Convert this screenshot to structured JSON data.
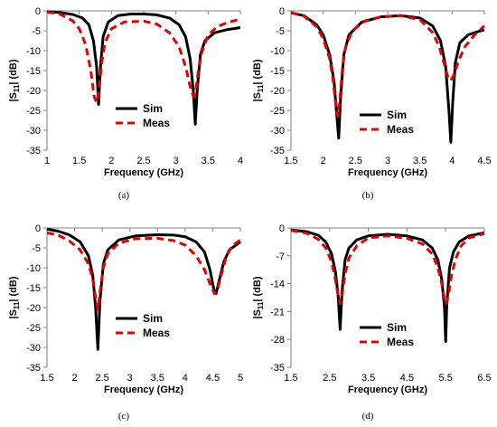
{
  "chart_data": [
    {
      "type": "line",
      "caption": "(a)",
      "xlabel": "Frequency (GHz)",
      "ylabel_main": "|S",
      "ylabel_sub": "11",
      "ylabel_tail": "| (dB)",
      "xlim": [
        1,
        4
      ],
      "ylim": [
        -35,
        0
      ],
      "xticks": [
        1,
        1.5,
        2,
        2.5,
        3,
        3.5,
        4
      ],
      "xtick_labels": [
        "1",
        "1.5",
        "2",
        "2.5",
        "3",
        "3.5",
        "4"
      ],
      "yticks": [
        0,
        -5,
        -10,
        -15,
        -20,
        -25,
        -30,
        -35
      ],
      "ytick_labels": [
        "0",
        "-5",
        "-10",
        "-15",
        "-20",
        "-25",
        "-30",
        "-35"
      ],
      "legend_position": "center-right",
      "series": [
        {
          "name": "Sim",
          "color": "#000000",
          "dash": "solid",
          "x": [
            1.0,
            1.2,
            1.4,
            1.55,
            1.65,
            1.72,
            1.77,
            1.8,
            1.83,
            1.87,
            1.95,
            2.1,
            2.3,
            2.5,
            2.7,
            2.9,
            3.05,
            3.15,
            3.22,
            3.27,
            3.3,
            3.33,
            3.38,
            3.45,
            3.6,
            3.8,
            4.0
          ],
          "y": [
            -0.2,
            -0.4,
            -0.9,
            -1.8,
            -3.5,
            -7.5,
            -14,
            -23.5,
            -14,
            -6.5,
            -2.8,
            -1.2,
            -0.8,
            -0.8,
            -1.0,
            -1.8,
            -3.5,
            -6.5,
            -12,
            -20,
            -28.5,
            -20,
            -11,
            -7.5,
            -5.5,
            -4.7,
            -4.2
          ]
        },
        {
          "name": "Meas",
          "color": "#e60000",
          "dash": "dashed",
          "x": [
            1.0,
            1.2,
            1.4,
            1.5,
            1.6,
            1.68,
            1.73,
            1.77,
            1.8,
            1.85,
            1.9,
            2.0,
            2.2,
            2.5,
            2.7,
            2.9,
            3.05,
            3.15,
            3.22,
            3.27,
            3.3,
            3.35,
            3.4,
            3.5,
            3.65,
            3.8,
            4.0
          ],
          "y": [
            -0.3,
            -0.8,
            -2.5,
            -4.5,
            -8.5,
            -15,
            -21.5,
            -23,
            -21,
            -13,
            -8,
            -4.5,
            -2.8,
            -2.6,
            -3.3,
            -5.5,
            -9,
            -14,
            -19,
            -21.5,
            -21,
            -15,
            -10.5,
            -6,
            -3.9,
            -2.9,
            -2.1
          ]
        }
      ]
    },
    {
      "type": "line",
      "caption": "(b)",
      "xlabel": "Frequency (GHz)",
      "ylabel_main": "|S",
      "ylabel_sub": "11",
      "ylabel_tail": "| (dB)",
      "xlim": [
        1.5,
        4.5
      ],
      "ylim": [
        -35,
        0
      ],
      "xticks": [
        1.5,
        2,
        2.5,
        3,
        3.5,
        4,
        4.5
      ],
      "xtick_labels": [
        "1.5",
        "2",
        "2.5",
        "3",
        "3.5",
        "4",
        "4.5"
      ],
      "yticks": [
        0,
        -5,
        -10,
        -15,
        -20,
        -25,
        -30,
        -35
      ],
      "ytick_labels": [
        "0",
        "-5",
        "-10",
        "-15",
        "-20",
        "-25",
        "-30",
        "-35"
      ],
      "legend_position": "center-right",
      "series": [
        {
          "name": "Sim",
          "color": "#000000",
          "dash": "solid",
          "x": [
            1.5,
            1.7,
            1.9,
            2.0,
            2.1,
            2.17,
            2.21,
            2.24,
            2.27,
            2.32,
            2.4,
            2.6,
            2.9,
            3.2,
            3.5,
            3.7,
            3.82,
            3.9,
            3.95,
            3.98,
            4.01,
            4.05,
            4.12,
            4.25,
            4.4,
            4.5
          ],
          "y": [
            -0.5,
            -1.2,
            -3.5,
            -6,
            -11,
            -18,
            -26,
            -32,
            -22,
            -11,
            -6,
            -2.8,
            -1.5,
            -1.2,
            -1.8,
            -3.8,
            -7.5,
            -14,
            -25,
            -33,
            -23,
            -13,
            -8,
            -6,
            -5.2,
            -4.8
          ]
        },
        {
          "name": "Meas",
          "color": "#e60000",
          "dash": "dashed",
          "x": [
            1.5,
            1.7,
            1.9,
            2.0,
            2.1,
            2.15,
            2.2,
            2.23,
            2.26,
            2.3,
            2.35,
            2.45,
            2.65,
            2.9,
            3.2,
            3.5,
            3.7,
            3.8,
            3.88,
            3.94,
            3.98,
            4.03,
            4.1,
            4.2,
            4.35,
            4.5
          ],
          "y": [
            -0.4,
            -1.3,
            -4,
            -7,
            -12,
            -17,
            -24,
            -26.5,
            -22,
            -14,
            -9,
            -5,
            -2.5,
            -1.5,
            -1.2,
            -2.2,
            -5.5,
            -9,
            -13.5,
            -17,
            -17.5,
            -16,
            -12.5,
            -9,
            -6,
            -3.8
          ]
        }
      ]
    },
    {
      "type": "line",
      "caption": "(c)",
      "xlabel": "Frequency (GHz)",
      "ylabel_main": "|S",
      "ylabel_sub": "11",
      "ylabel_tail": "| (dB)",
      "xlim": [
        1.5,
        5
      ],
      "ylim": [
        -35,
        0
      ],
      "xticks": [
        1.5,
        2,
        2.5,
        3,
        3.5,
        4,
        4.5,
        5
      ],
      "xtick_labels": [
        "1.5",
        "2",
        "2.5",
        "3",
        "3.5",
        "4",
        "4.5",
        "5"
      ],
      "yticks": [
        0,
        -5,
        -10,
        -15,
        -20,
        -25,
        -30,
        -35
      ],
      "ytick_labels": [
        "0",
        "-5",
        "-10",
        "-15",
        "-20",
        "-25",
        "-30",
        "-35"
      ],
      "legend_position": "bottom-center",
      "series": [
        {
          "name": "Sim",
          "color": "#000000",
          "dash": "solid",
          "x": [
            1.5,
            1.7,
            1.9,
            2.1,
            2.25,
            2.33,
            2.38,
            2.42,
            2.46,
            2.52,
            2.6,
            2.8,
            3.1,
            3.5,
            3.8,
            4.0,
            4.2,
            4.35,
            4.45,
            4.52,
            4.56,
            4.62,
            4.7,
            4.8,
            5.0
          ],
          "y": [
            -0.3,
            -0.8,
            -1.7,
            -3.5,
            -7,
            -12,
            -20,
            -30.5,
            -18,
            -9,
            -5.5,
            -3,
            -2,
            -1.7,
            -1.8,
            -2.2,
            -3.5,
            -6,
            -10.5,
            -15.5,
            -16.5,
            -13,
            -8.5,
            -5.5,
            -3.5
          ]
        },
        {
          "name": "Meas",
          "color": "#e60000",
          "dash": "dashed",
          "x": [
            1.5,
            1.7,
            1.9,
            2.1,
            2.25,
            2.33,
            2.38,
            2.42,
            2.46,
            2.52,
            2.6,
            2.8,
            3.1,
            3.5,
            3.8,
            4.0,
            4.2,
            4.35,
            4.45,
            4.53,
            4.58,
            4.65,
            4.75,
            4.85,
            5.0
          ],
          "y": [
            -1.2,
            -1.8,
            -3.2,
            -5.5,
            -9,
            -13,
            -17.5,
            -20.5,
            -16,
            -10,
            -6.5,
            -3.8,
            -2.7,
            -2.6,
            -3.2,
            -4.3,
            -7,
            -10.5,
            -14,
            -16.5,
            -15.8,
            -12,
            -7,
            -4.5,
            -3
          ]
        }
      ]
    },
    {
      "type": "line",
      "caption": "(d)",
      "xlabel": "Frequency (GHz)",
      "ylabel_main": "|S",
      "ylabel_sub": "11",
      "ylabel_tail": "| (dB)",
      "xlim": [
        1.5,
        6.5
      ],
      "ylim": [
        -35,
        0
      ],
      "xticks": [
        1.5,
        2.5,
        3.5,
        4.5,
        5.5,
        6.5
      ],
      "xtick_labels": [
        "1.5",
        "2.5",
        "3.5",
        "4.5",
        "5.5",
        "6.5"
      ],
      "yticks": [
        0,
        -7,
        -14,
        -21,
        -28,
        -35
      ],
      "ytick_labels": [
        "0",
        "-7",
        "-14",
        "-21",
        "-28",
        "-35"
      ],
      "legend_position": "bottom-center",
      "series": [
        {
          "name": "Sim",
          "color": "#000000",
          "dash": "solid",
          "x": [
            1.5,
            1.9,
            2.2,
            2.4,
            2.55,
            2.65,
            2.72,
            2.77,
            2.82,
            2.9,
            3.0,
            3.2,
            3.5,
            4.0,
            4.5,
            4.9,
            5.15,
            5.3,
            5.4,
            5.47,
            5.5,
            5.53,
            5.6,
            5.7,
            5.85,
            6.1,
            6.5
          ],
          "y": [
            -0.5,
            -0.9,
            -1.8,
            -3.5,
            -6.5,
            -11,
            -17,
            -25.5,
            -16,
            -8,
            -5,
            -3,
            -2,
            -1.6,
            -2,
            -3,
            -5,
            -8,
            -13,
            -20,
            -28.5,
            -19,
            -10,
            -6,
            -3.5,
            -2,
            -1.2
          ]
        },
        {
          "name": "Meas",
          "color": "#e60000",
          "dash": "dashed",
          "x": [
            1.5,
            1.9,
            2.2,
            2.4,
            2.55,
            2.65,
            2.72,
            2.77,
            2.82,
            2.9,
            3.0,
            3.2,
            3.5,
            4.0,
            4.5,
            4.9,
            5.15,
            5.3,
            5.4,
            5.47,
            5.52,
            5.58,
            5.65,
            5.75,
            5.9,
            6.1,
            6.5
          ],
          "y": [
            -0.6,
            -1.3,
            -2.8,
            -5,
            -8.5,
            -13,
            -17,
            -19,
            -17,
            -11.5,
            -7.5,
            -4.5,
            -2.5,
            -2,
            -2.6,
            -4,
            -6.5,
            -10,
            -14,
            -18,
            -19,
            -16.5,
            -12,
            -8,
            -4.5,
            -2.5,
            -1.4
          ]
        }
      ]
    }
  ]
}
